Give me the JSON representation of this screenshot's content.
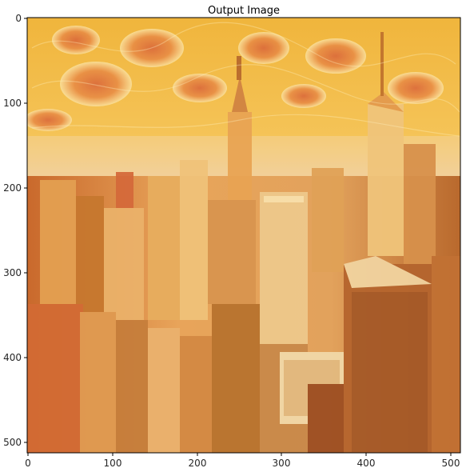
{
  "figure": {
    "title": "Output Image",
    "x_ticks": [
      "0",
      "100",
      "200",
      "300",
      "400",
      "500"
    ],
    "y_ticks": [
      "0",
      "100",
      "200",
      "300",
      "400",
      "500"
    ]
  },
  "chart_data": {
    "type": "image",
    "title": "Output Image",
    "xlabel": "",
    "ylabel": "",
    "xlim": [
      0,
      512
    ],
    "ylim": [
      512,
      0
    ],
    "x_ticks": [
      0,
      100,
      200,
      300,
      400,
      500
    ],
    "y_ticks": [
      0,
      100,
      200,
      300,
      400,
      500
    ],
    "grid": false,
    "image_description_colors": {
      "sky_top": "#f2a93c",
      "sky_swirl": "#f4d27a",
      "buildings_mid": "#e8a35a",
      "buildings_dark": "#b0632a",
      "highlight": "#fff2c2"
    }
  }
}
